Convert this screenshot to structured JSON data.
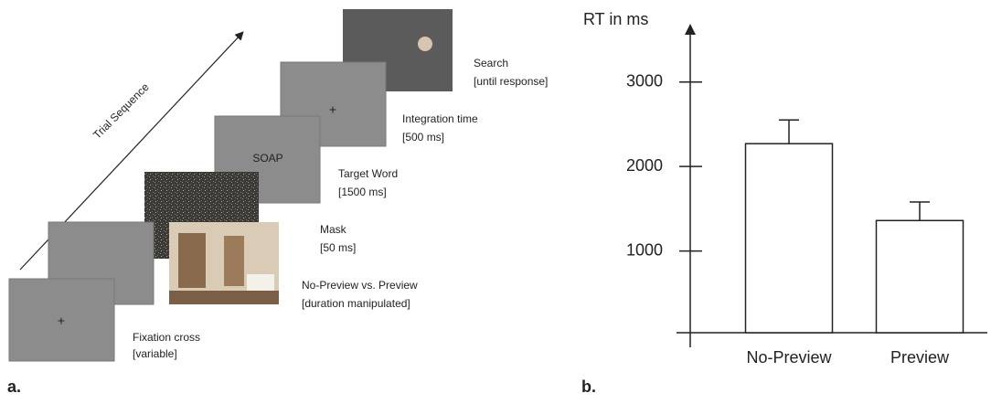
{
  "diagram": {
    "arrow_label": "Trial Sequence",
    "panel_label": "a.",
    "frames": [
      {
        "name": "Fixation cross",
        "duration": "[variable]",
        "content": "+"
      },
      {
        "name": "No-Preview vs. Preview",
        "duration": "[duration manipulated]"
      },
      {
        "name": "Mask",
        "duration": "[50 ms]"
      },
      {
        "name": "Target Word",
        "duration": "[1500 ms]",
        "content": "SOAP"
      },
      {
        "name": "Integration time",
        "duration": "[500 ms]",
        "content": "+"
      },
      {
        "name": "Search",
        "duration": "[until response]"
      }
    ]
  },
  "chart_data": {
    "type": "bar",
    "panel_label": "b.",
    "y_label": "RT in ms",
    "categories": [
      "No-Preview",
      "Preview"
    ],
    "values": [
      2270,
      1360
    ],
    "errors": [
      280,
      220
    ],
    "color": "#ffffff",
    "ylim": [
      0,
      3700
    ],
    "yticks": [
      1000,
      2000,
      3000
    ]
  }
}
